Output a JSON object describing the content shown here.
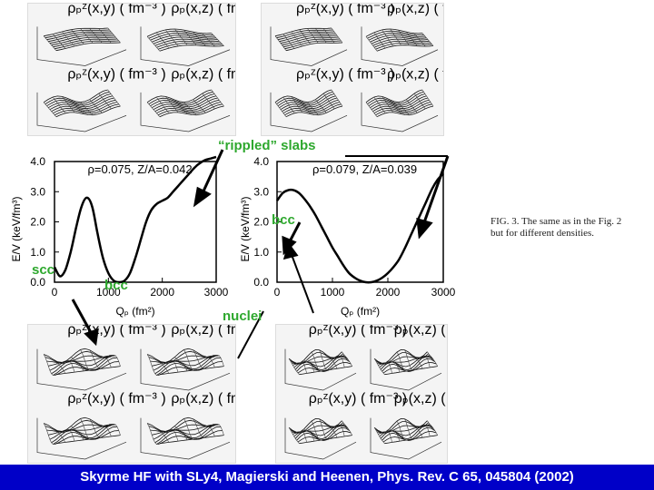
{
  "annotations": {
    "rippled_slabs": "“rippled” slabs",
    "bcc_right": "bcc",
    "scc": "scc",
    "bcc_left": "bcc",
    "nuclei": "nuclei"
  },
  "caption": "FIG. 3. The same as in the Fig. 2 but for different densities.",
  "footer": "Skyrme HF with SLy4, Magierski and  Heenen, Phys. Rev. C 65, 045804 (2002)",
  "surface_labels": {
    "rho_xy": "ρₚᶻ(x,y) ( fm⁻³ )",
    "rho_xz": "ρₚ(x,z) ( fm⁻³ )"
  },
  "chart_data": [
    {
      "type": "line",
      "title": "ρ=0.075, Z/A=0.042",
      "xlabel": "Qₚ (fm²)",
      "ylabel": "E/V (keV/fm³)",
      "xticks": [
        "0",
        "1000",
        "2000",
        "3000"
      ],
      "yticks": [
        "0.0",
        "1.0",
        "2.0",
        "3.0",
        "4.0"
      ],
      "xlim": [
        0,
        3000
      ],
      "ylim": [
        0,
        4
      ],
      "x": [
        0,
        100,
        200,
        300,
        400,
        500,
        600,
        700,
        800,
        900,
        1000,
        1100,
        1200,
        1300,
        1400,
        1500,
        1600,
        1700,
        1800,
        1900,
        2000,
        2100,
        2200,
        2300,
        2400,
        2500,
        2600,
        2700,
        2800,
        2900,
        3000
      ],
      "y": [
        0.5,
        0.2,
        0.4,
        1.0,
        1.8,
        2.5,
        2.8,
        2.5,
        1.6,
        0.8,
        0.3,
        0.05,
        0.0,
        0.05,
        0.3,
        0.8,
        1.4,
        2.0,
        2.4,
        2.6,
        2.7,
        2.8,
        3.0,
        3.2,
        3.4,
        3.6,
        3.8,
        3.95,
        4.05,
        4.1,
        4.15
      ]
    },
    {
      "type": "line",
      "title": "ρ=0.079, Z/A=0.039",
      "xlabel": "Qₚ (fm²)",
      "ylabel": "E/V (keV/fm³)",
      "xticks": [
        "0",
        "1000",
        "2000",
        "3000"
      ],
      "yticks": [
        "0.0",
        "1.0",
        "2.0",
        "3.0",
        "4.0"
      ],
      "xlim": [
        0,
        3000
      ],
      "ylim": [
        0,
        4
      ],
      "x": [
        0,
        100,
        200,
        300,
        400,
        500,
        600,
        700,
        800,
        900,
        1000,
        1100,
        1200,
        1300,
        1400,
        1500,
        1600,
        1700,
        1800,
        1900,
        2000,
        2100,
        2200,
        2300,
        2400,
        2500,
        2600,
        2700,
        2800,
        2900,
        3000
      ],
      "y": [
        2.7,
        2.95,
        3.05,
        3.05,
        2.95,
        2.75,
        2.5,
        2.2,
        1.85,
        1.5,
        1.15,
        0.85,
        0.55,
        0.3,
        0.15,
        0.05,
        0.0,
        0.0,
        0.05,
        0.15,
        0.3,
        0.5,
        0.75,
        1.1,
        1.5,
        1.9,
        2.3,
        2.7,
        3.1,
        3.4,
        3.6
      ]
    }
  ]
}
